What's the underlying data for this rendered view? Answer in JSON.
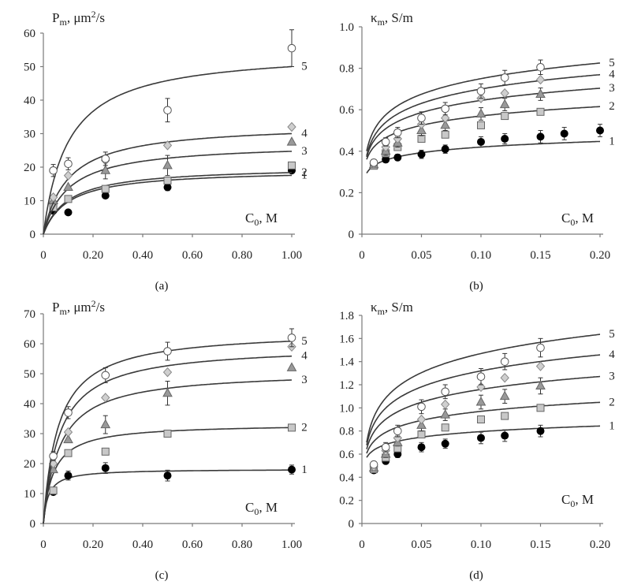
{
  "markers": {
    "1": "filled-circle",
    "2": "square",
    "3": "triangle",
    "4": "diamond",
    "5": "open-circle"
  },
  "colors": {
    "axis": "#7a7a7a",
    "curve": "#3a3a3a",
    "square": "#c8c8c8",
    "triangle": "#999999",
    "diamond": "#cfcfcf",
    "filled": "#000000"
  },
  "chart_data": [
    {
      "panel": "a",
      "caption": "(a)",
      "type": "scatter",
      "ylabel": "P<sub>m</sub>, μm²/s",
      "ylabel_main": "P",
      "ylabel_sub": "m",
      "ylabel_rest": ", μm",
      "ylabel_sup": "2",
      "ylabel_tail": "/s",
      "xlabel_main": "C",
      "xlabel_sub": "0",
      "xlabel_rest": ", M",
      "xlim": [
        0,
        1.0
      ],
      "ylim": [
        0,
        60
      ],
      "xticks": [
        0,
        0.2,
        0.4,
        0.6,
        0.8,
        1.0
      ],
      "xtick_labels": [
        "0",
        "0.20",
        "0.40",
        "0.60",
        "0.80",
        "1.00"
      ],
      "yticks": [
        0,
        10,
        20,
        30,
        40,
        50,
        60
      ],
      "ytick_labels": [
        "0",
        "10",
        "20",
        "30",
        "40",
        "50",
        "60"
      ],
      "series": [
        {
          "name": "1",
          "marker": "filled-circle",
          "x": [
            0.04,
            0.1,
            0.25,
            0.5,
            1.0
          ],
          "y": [
            7,
            6.5,
            11.5,
            14,
            19
          ],
          "err": [
            0,
            0,
            0,
            1,
            0
          ],
          "fit": {
            "model": "langmuir",
            "pmax": 19.3,
            "k": 0.1
          }
        },
        {
          "name": "2",
          "marker": "square",
          "x": [
            0.04,
            0.1,
            0.25,
            0.5,
            1.0
          ],
          "y": [
            8,
            10.5,
            13.5,
            16,
            20.5
          ],
          "err": [
            0,
            0,
            0,
            0,
            0
          ],
          "fit": {
            "model": "langmuir",
            "pmax": 20.2,
            "k": 0.1
          }
        },
        {
          "name": "3",
          "marker": "triangle",
          "x": [
            0.04,
            0.1,
            0.25,
            0.5,
            1.0
          ],
          "y": [
            10,
            14,
            19,
            20.5,
            27.5
          ],
          "err": [
            0,
            0,
            2.5,
            3,
            0
          ],
          "fit": {
            "model": "langmuir",
            "pmax": 27.2,
            "k": 0.1
          }
        },
        {
          "name": "4",
          "marker": "diamond",
          "x": [
            0.04,
            0.1,
            0.25,
            0.5,
            1.0
          ],
          "y": [
            11,
            17.5,
            22,
            26.5,
            32
          ],
          "err": [
            0,
            0,
            0,
            0,
            0
          ],
          "fit": {
            "model": "langmuir",
            "pmax": 33,
            "k": 0.1
          }
        },
        {
          "name": "5",
          "marker": "open-circle",
          "x": [
            0.04,
            0.1,
            0.25,
            0.5,
            1.0
          ],
          "y": [
            19,
            21,
            22.5,
            37,
            55.5
          ],
          "err": [
            1.8,
            1.8,
            2,
            3.5,
            5.5
          ],
          "fit": {
            "model": "langmuir",
            "pmax": 55,
            "k": 0.1
          }
        }
      ]
    },
    {
      "panel": "b",
      "caption": "(b)",
      "type": "scatter",
      "ylabel_main": "κ",
      "ylabel_sub": "m",
      "ylabel_rest": ", S/m",
      "xlabel_main": "C",
      "xlabel_sub": "0",
      "xlabel_rest": ", M",
      "xlim": [
        0,
        0.2
      ],
      "ylim": [
        0,
        1.0
      ],
      "xticks": [
        0,
        0.05,
        0.1,
        0.15,
        0.2
      ],
      "xtick_labels": [
        "0",
        "0.05",
        "0.10",
        "0.15",
        "0.20"
      ],
      "yticks": [
        0,
        0.2,
        0.4,
        0.6,
        0.8,
        1.0
      ],
      "ytick_labels": [
        "0",
        "0.2",
        "0.4",
        "0.6",
        "0.8",
        "1.0"
      ],
      "series": [
        {
          "name": "1",
          "marker": "filled-circle",
          "x": [
            0.01,
            0.02,
            0.03,
            0.05,
            0.07,
            0.1,
            0.12,
            0.15,
            0.17,
            0.2
          ],
          "y": [
            0.335,
            0.36,
            0.37,
            0.385,
            0.41,
            0.445,
            0.46,
            0.47,
            0.485,
            0.5
          ],
          "err": [
            0,
            0.015,
            0.015,
            0.02,
            0.02,
            0.025,
            0.025,
            0.03,
            0.03,
            0.03
          ],
          "fit": {
            "model": "log",
            "a": 0.51,
            "b": 0.09
          }
        },
        {
          "name": "2",
          "marker": "square",
          "x": [
            0.01,
            0.02,
            0.03,
            0.05,
            0.07,
            0.1,
            0.12,
            0.15
          ],
          "y": [
            0.33,
            0.39,
            0.42,
            0.46,
            0.48,
            0.525,
            0.57,
            0.59
          ],
          "err": [
            0,
            0,
            0,
            0,
            0,
            0,
            0,
            0
          ],
          "fit": {
            "model": "log",
            "a": 0.72,
            "b": 0.15
          }
        },
        {
          "name": "3",
          "marker": "triangle",
          "x": [
            0.01,
            0.02,
            0.03,
            0.05,
            0.07,
            0.1,
            0.12,
            0.15
          ],
          "y": [
            0.335,
            0.4,
            0.44,
            0.5,
            0.525,
            0.58,
            0.625,
            0.675
          ],
          "err": [
            0,
            0.02,
            0.02,
            0.025,
            0.025,
            0.03,
            0.03,
            0.03
          ],
          "fit": {
            "model": "log",
            "a": 0.84,
            "b": 0.195
          }
        },
        {
          "name": "4",
          "marker": "diamond",
          "x": [
            0.01,
            0.02,
            0.03,
            0.05,
            0.07,
            0.1,
            0.12,
            0.15
          ],
          "y": [
            0.34,
            0.42,
            0.46,
            0.53,
            0.56,
            0.655,
            0.68,
            0.745
          ],
          "err": [
            0,
            0,
            0,
            0,
            0,
            0,
            0,
            0
          ],
          "fit": {
            "model": "log",
            "a": 0.93,
            "b": 0.23
          }
        },
        {
          "name": "5",
          "marker": "open-circle",
          "x": [
            0.01,
            0.02,
            0.03,
            0.05,
            0.07,
            0.1,
            0.12,
            0.15
          ],
          "y": [
            0.345,
            0.445,
            0.49,
            0.56,
            0.605,
            0.69,
            0.755,
            0.805
          ],
          "err": [
            0.015,
            0.02,
            0.025,
            0.03,
            0.03,
            0.035,
            0.035,
            0.035
          ],
          "fit": {
            "model": "log",
            "a": 1.0,
            "b": 0.25
          }
        }
      ]
    },
    {
      "panel": "c",
      "caption": "(c)",
      "type": "scatter",
      "ylabel_main": "P",
      "ylabel_sub": "m",
      "ylabel_rest": ", μm",
      "ylabel_sup": "2",
      "ylabel_tail": "/s",
      "xlabel_main": "C",
      "xlabel_sub": "0",
      "xlabel_rest": ", M",
      "xlim": [
        0,
        1.0
      ],
      "ylim": [
        0,
        70
      ],
      "xticks": [
        0,
        0.2,
        0.4,
        0.6,
        0.8,
        1.0
      ],
      "xtick_labels": [
        "0",
        "0.20",
        "0.40",
        "0.60",
        "0.80",
        "1.00"
      ],
      "yticks": [
        0,
        10,
        20,
        30,
        40,
        50,
        60,
        70
      ],
      "ytick_labels": [
        "0",
        "10",
        "20",
        "30",
        "40",
        "50",
        "60",
        "70"
      ],
      "series": [
        {
          "name": "1",
          "marker": "filled-circle",
          "x": [
            0.04,
            0.1,
            0.25,
            0.5,
            1.0
          ],
          "y": [
            10.5,
            16,
            18.5,
            16,
            18
          ],
          "err": [
            0,
            1.5,
            1.8,
            1.8,
            1.5
          ],
          "fit": {
            "model": "langmuir",
            "pmax": 18.2,
            "k": 0.02
          }
        },
        {
          "name": "2",
          "marker": "square",
          "x": [
            0.04,
            0.1,
            0.25,
            0.5,
            1.0
          ],
          "y": [
            11,
            23.5,
            24,
            30,
            32
          ],
          "err": [
            0,
            0,
            0,
            0,
            0
          ],
          "fit": {
            "model": "langmuir",
            "pmax": 33.3,
            "k": 0.04
          }
        },
        {
          "name": "3",
          "marker": "triangle",
          "x": [
            0.04,
            0.1,
            0.25,
            0.5,
            1.0
          ],
          "y": [
            18,
            28,
            33,
            43.5,
            52
          ],
          "err": [
            0,
            0,
            3,
            4,
            0
          ],
          "fit": {
            "model": "langmuir",
            "pmax": 51,
            "k": 0.065
          }
        },
        {
          "name": "4",
          "marker": "diamond",
          "x": [
            0.04,
            0.1,
            0.25,
            0.5,
            1.0
          ],
          "y": [
            20,
            30.5,
            42,
            50.5,
            59
          ],
          "err": [
            0,
            0,
            0,
            0,
            0
          ],
          "fit": {
            "model": "langmuir",
            "pmax": 59.5,
            "k": 0.065
          }
        },
        {
          "name": "5",
          "marker": "open-circle",
          "x": [
            0.04,
            0.1,
            0.25,
            0.5,
            1.0
          ],
          "y": [
            22.5,
            37,
            49.5,
            57.5,
            62
          ],
          "err": [
            1.5,
            2,
            2.5,
            3,
            3
          ],
          "fit": {
            "model": "langmuir",
            "pmax": 64.5,
            "k": 0.06
          }
        }
      ]
    },
    {
      "panel": "d",
      "caption": "(d)",
      "type": "scatter",
      "ylabel_main": "κ",
      "ylabel_sub": "m",
      "ylabel_rest": ", S/m",
      "xlabel_main": "C",
      "xlabel_sub": "0",
      "xlabel_rest": ", M",
      "xlim": [
        0,
        0.2
      ],
      "ylim": [
        0,
        1.8
      ],
      "xticks": [
        0,
        0.05,
        0.1,
        0.15,
        0.2
      ],
      "xtick_labels": [
        "0",
        "0.05",
        "0.10",
        "0.15",
        "0.20"
      ],
      "yticks": [
        0,
        0.2,
        0.4,
        0.6,
        0.8,
        1.0,
        1.2,
        1.4,
        1.6,
        1.8
      ],
      "ytick_labels": [
        "0",
        "0.2",
        "0.4",
        "0.6",
        "0.8",
        "1.0",
        "1.2",
        "1.4",
        "1.6",
        "1.8"
      ],
      "series": [
        {
          "name": "1",
          "marker": "filled-circle",
          "x": [
            0.01,
            0.02,
            0.03,
            0.05,
            0.07,
            0.1,
            0.12,
            0.15
          ],
          "y": [
            0.46,
            0.54,
            0.6,
            0.66,
            0.69,
            0.74,
            0.76,
            0.8
          ],
          "err": [
            0,
            0.02,
            0.03,
            0.04,
            0.04,
            0.05,
            0.05,
            0.05
          ],
          "fit": {
            "model": "log",
            "a": 0.955,
            "b": 0.16
          }
        },
        {
          "name": "2",
          "marker": "square",
          "x": [
            0.01,
            0.02,
            0.03,
            0.05,
            0.07,
            0.1,
            0.12,
            0.15
          ],
          "y": [
            0.47,
            0.57,
            0.65,
            0.77,
            0.83,
            0.9,
            0.93,
            1.0
          ],
          "err": [
            0,
            0,
            0,
            0,
            0,
            0,
            0,
            0
          ],
          "fit": {
            "model": "log",
            "a": 1.23,
            "b": 0.26
          }
        },
        {
          "name": "3",
          "marker": "triangle",
          "x": [
            0.01,
            0.02,
            0.03,
            0.05,
            0.07,
            0.1,
            0.12,
            0.15
          ],
          "y": [
            0.48,
            0.6,
            0.7,
            0.85,
            0.94,
            1.05,
            1.1,
            1.19
          ],
          "err": [
            0,
            0.03,
            0.03,
            0.05,
            0.05,
            0.06,
            0.06,
            0.07
          ],
          "fit": {
            "model": "log",
            "a": 1.53,
            "b": 0.37
          }
        },
        {
          "name": "4",
          "marker": "diamond",
          "x": [
            0.01,
            0.02,
            0.03,
            0.05,
            0.07,
            0.1,
            0.12,
            0.15
          ],
          "y": [
            0.49,
            0.63,
            0.74,
            0.9,
            1.03,
            1.18,
            1.26,
            1.36
          ],
          "err": [
            0,
            0,
            0,
            0,
            0,
            0,
            0,
            0
          ],
          "fit": {
            "model": "log",
            "a": 1.78,
            "b": 0.46
          }
        },
        {
          "name": "5",
          "marker": "open-circle",
          "x": [
            0.01,
            0.02,
            0.03,
            0.05,
            0.07,
            0.1,
            0.12,
            0.15
          ],
          "y": [
            0.51,
            0.66,
            0.8,
            1.01,
            1.14,
            1.27,
            1.4,
            1.52
          ],
          "err": [
            0.02,
            0.04,
            0.05,
            0.06,
            0.06,
            0.07,
            0.07,
            0.08
          ],
          "fit": {
            "model": "log",
            "a": 2.02,
            "b": 0.55
          }
        }
      ]
    }
  ]
}
